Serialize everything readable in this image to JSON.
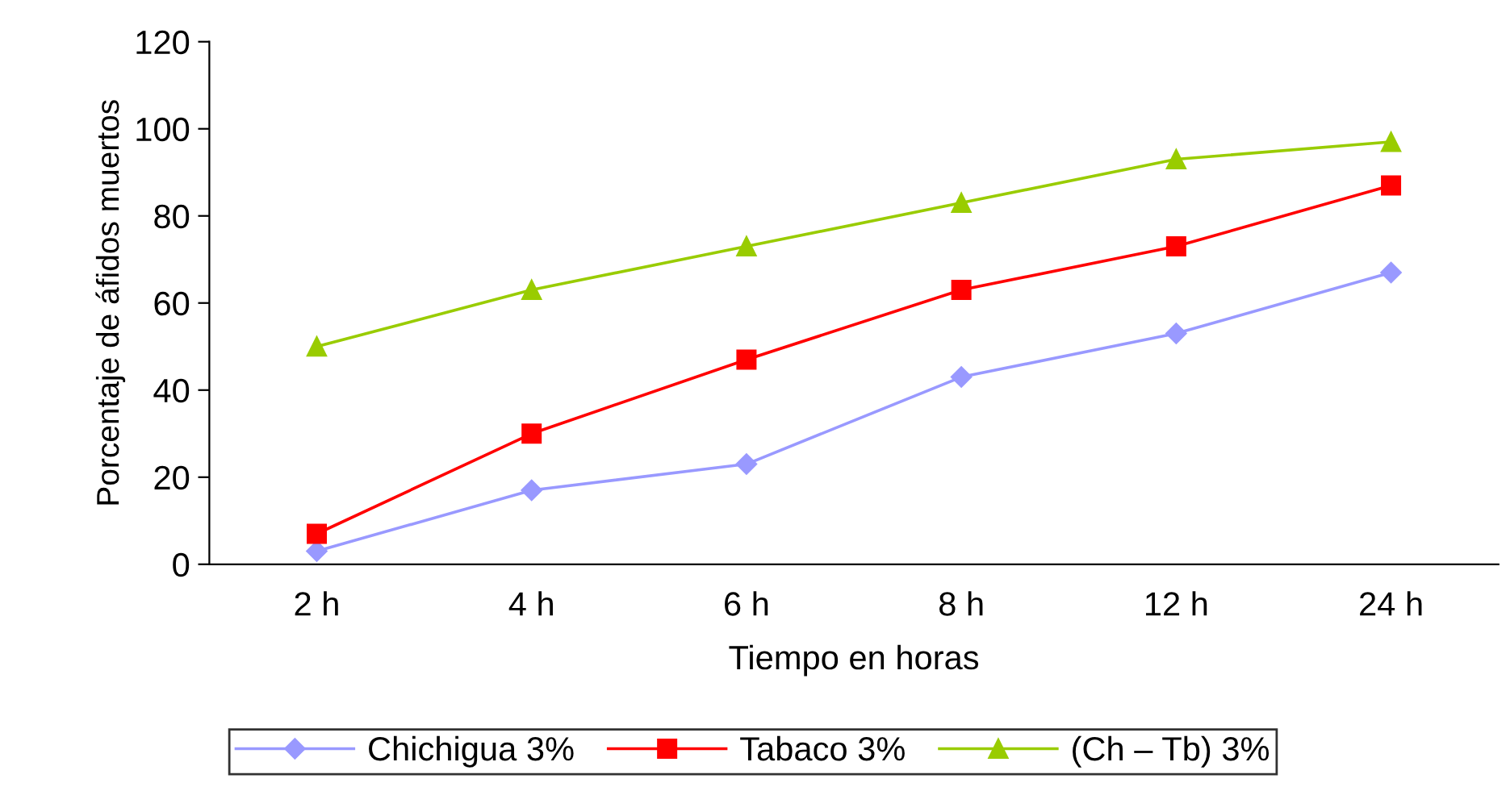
{
  "chart_data": {
    "type": "line",
    "xlabel": "Tiempo en horas",
    "ylabel": "Porcentaje de áfidos muertos",
    "categories": [
      "2 h",
      "4 h",
      "6 h",
      "8 h",
      "12 h",
      "24 h"
    ],
    "series": [
      {
        "name": "Chichigua 3%",
        "color": "#9999ff",
        "marker": "diamond",
        "values": [
          3,
          17,
          23,
          43,
          53,
          67
        ]
      },
      {
        "name": "Tabaco 3%",
        "color": "#ff0000",
        "marker": "square",
        "values": [
          7,
          30,
          47,
          63,
          73,
          87
        ]
      },
      {
        "name": "(Ch – Tb) 3%",
        "color": "#99cc00",
        "marker": "triangle",
        "values": [
          50,
          63,
          73,
          83,
          93,
          97
        ]
      }
    ],
    "ylim": [
      0,
      120
    ],
    "yticks": [
      0,
      20,
      40,
      60,
      80,
      100,
      120
    ],
    "grid": false,
    "legend": "bottom",
    "line_style": "solid"
  }
}
